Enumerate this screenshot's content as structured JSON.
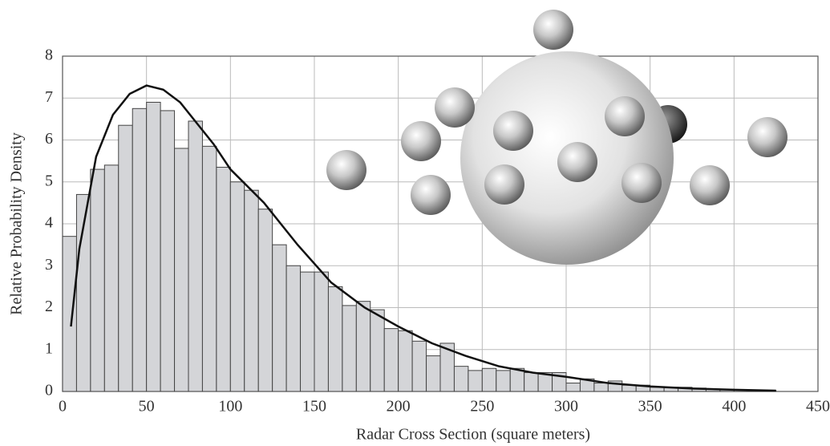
{
  "chart_data": {
    "type": "histogram",
    "xlabel": "Radar Cross Section (square meters)",
    "ylabel": "Relative Probability Density",
    "bins": [
      0,
      8.33,
      16.67,
      25,
      33.33,
      41.67,
      50,
      58.33,
      66.67,
      75,
      83.33,
      91.67,
      100,
      108.33,
      116.67,
      125,
      133.33,
      141.67,
      150,
      158.33,
      166.67,
      175,
      183.33,
      191.67,
      200,
      208.33,
      216.67,
      225,
      233.33,
      241.67,
      250,
      258.33,
      266.67,
      275,
      283.33,
      291.67,
      300,
      308.33,
      316.67,
      325,
      333.33,
      341.67,
      350,
      358.33,
      366.67,
      375,
      383.33,
      391.67,
      400,
      408.33,
      416.67,
      425
    ],
    "counts": [
      3.7,
      4.7,
      5.3,
      5.4,
      6.35,
      6.75,
      6.9,
      6.7,
      5.8,
      6.45,
      5.85,
      5.35,
      5.0,
      4.8,
      4.35,
      3.5,
      3.0,
      2.85,
      2.85,
      2.5,
      2.05,
      2.15,
      1.95,
      1.5,
      1.45,
      1.2,
      0.85,
      1.15,
      0.6,
      0.5,
      0.55,
      0.5,
      0.55,
      0.45,
      0.45,
      0.45,
      0.2,
      0.3,
      0.2,
      0.25,
      0.15,
      0.15,
      0.1,
      0.1,
      0.1,
      0.08,
      0.05,
      0.05,
      0.03,
      0.03,
      0.02
    ],
    "color": "#d4d5d8",
    "curve": {
      "x": [
        5,
        10,
        20,
        30,
        40,
        50,
        60,
        70,
        80,
        90,
        100,
        120,
        140,
        160,
        180,
        200,
        220,
        240,
        260,
        280,
        300,
        325,
        350,
        375,
        400,
        425
      ],
      "y": [
        1.55,
        3.4,
        5.6,
        6.6,
        7.1,
        7.3,
        7.2,
        6.9,
        6.4,
        5.9,
        5.3,
        4.5,
        3.5,
        2.6,
        2.0,
        1.55,
        1.15,
        0.85,
        0.6,
        0.45,
        0.35,
        0.2,
        0.12,
        0.07,
        0.04,
        0.02
      ],
      "color": "#111111"
    },
    "xlim": [
      0,
      450
    ],
    "xticks": [
      0,
      50,
      100,
      150,
      200,
      250,
      300,
      350,
      400,
      450
    ],
    "ylim": [
      0,
      8
    ],
    "yticks": [
      0,
      1,
      2,
      3,
      4,
      5,
      6,
      7,
      8
    ],
    "grid": true
  }
}
